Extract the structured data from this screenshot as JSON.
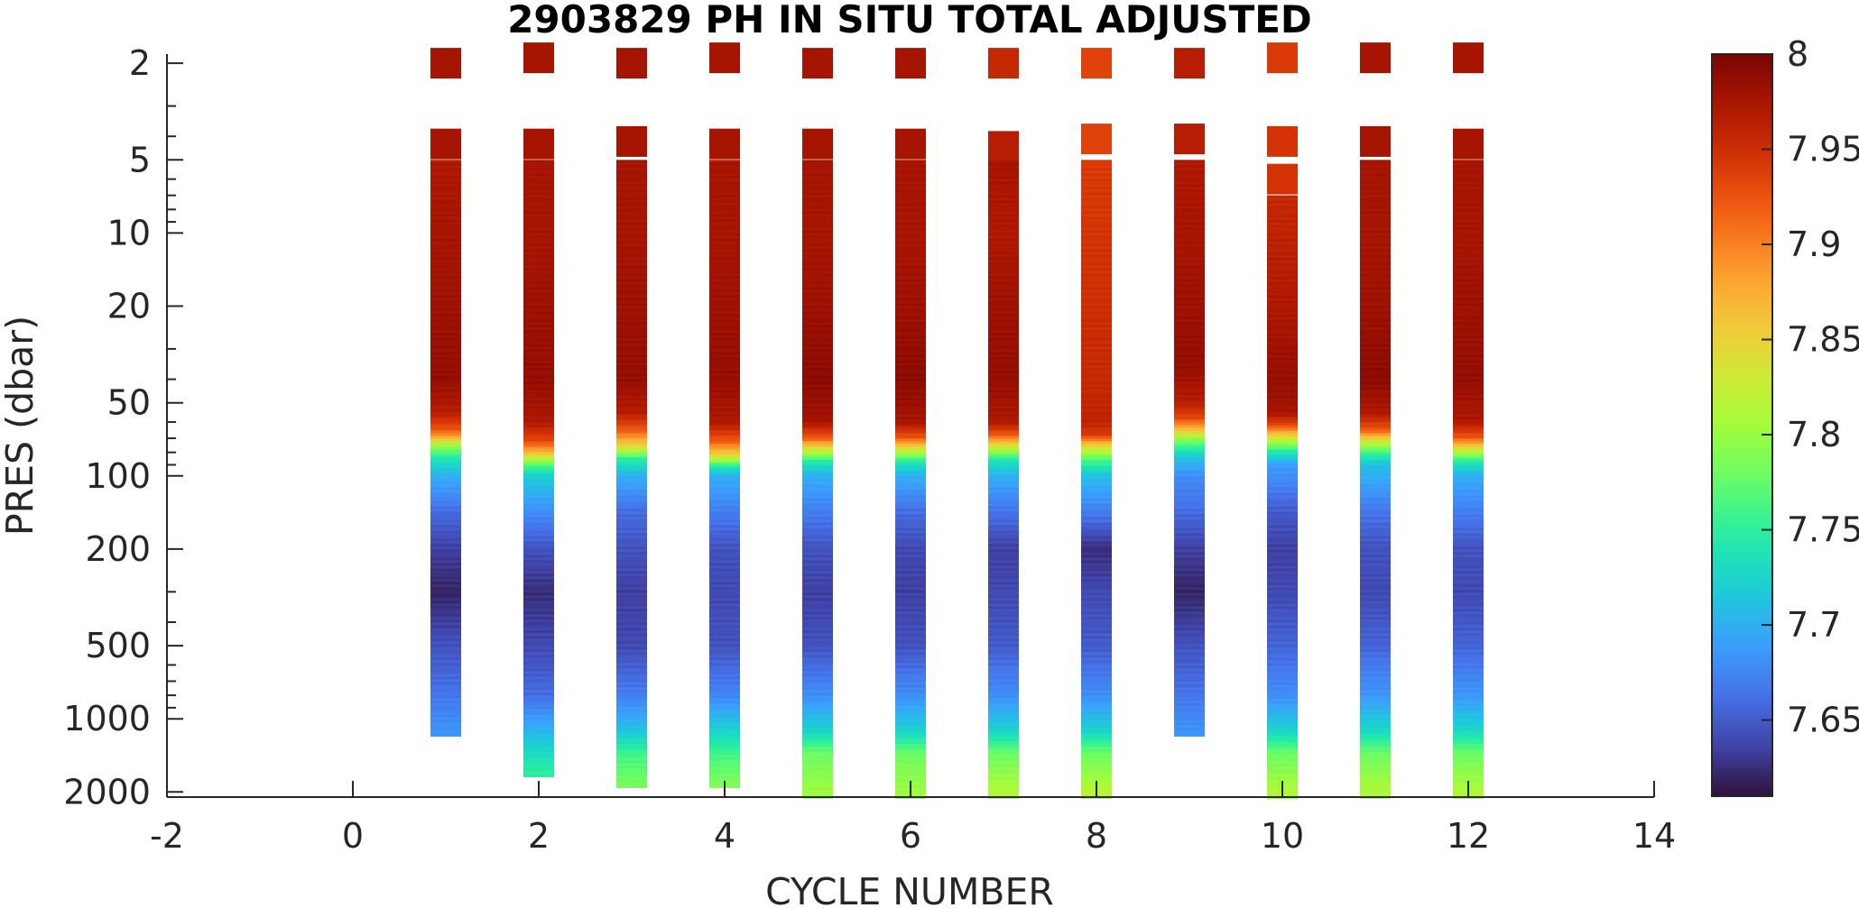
{
  "chart_data": {
    "type": "heatmap",
    "title": "2903829  PH IN SITU TOTAL ADJUSTED",
    "xlabel": "CYCLE NUMBER",
    "ylabel": "PRES (dbar)",
    "xlim": [
      -2,
      14
    ],
    "x_ticks": [
      -2,
      0,
      2,
      4,
      6,
      8,
      10,
      12,
      14
    ],
    "x_tick_labels": [
      "-2",
      "0",
      "2",
      "4",
      "6",
      "8",
      "10",
      "12",
      "14"
    ],
    "y_scale": "log",
    "y_reversed": true,
    "ylim": [
      1.6,
      2100
    ],
    "y_ticks": [
      2,
      5,
      10,
      20,
      50,
      100,
      200,
      500,
      1000,
      2000
    ],
    "y_tick_labels": [
      "2",
      "5",
      "10",
      "20",
      "50",
      "100",
      "200",
      "500",
      "1000",
      "2000"
    ],
    "colorbar": {
      "min": 7.61,
      "max": 8.0,
      "ticks": [
        7.65,
        7.7,
        7.75,
        7.8,
        7.85,
        7.9,
        7.95,
        8
      ],
      "tick_labels": [
        "7.65",
        "7.7",
        "7.75",
        "7.8",
        "7.85",
        "7.9",
        "7.95",
        "8"
      ],
      "colormap": "turbo"
    },
    "profiles": [
      {
        "cycle": 1,
        "top_samples": [
          {
            "pres": 2.0,
            "ph": 7.975
          },
          {
            "pres": 4.3,
            "ph": 7.975
          }
        ],
        "profile": [
          [
            5,
            7.97
          ],
          [
            10,
            7.975
          ],
          [
            20,
            7.98
          ],
          [
            40,
            7.985
          ],
          [
            55,
            7.965
          ],
          [
            65,
            7.92
          ],
          [
            70,
            7.87
          ],
          [
            75,
            7.8
          ],
          [
            85,
            7.74
          ],
          [
            100,
            7.7
          ],
          [
            140,
            7.66
          ],
          [
            200,
            7.635
          ],
          [
            300,
            7.62
          ],
          [
            500,
            7.645
          ],
          [
            800,
            7.665
          ],
          [
            1150,
            7.685
          ]
        ]
      },
      {
        "cycle": 2,
        "top_samples": [
          {
            "pres": 1.9,
            "ph": 7.975
          },
          {
            "pres": 4.3,
            "ph": 7.975
          }
        ],
        "profile": [
          [
            5,
            7.975
          ],
          [
            10,
            7.975
          ],
          [
            20,
            7.98
          ],
          [
            40,
            7.985
          ],
          [
            60,
            7.97
          ],
          [
            72,
            7.93
          ],
          [
            80,
            7.87
          ],
          [
            90,
            7.77
          ],
          [
            100,
            7.72
          ],
          [
            140,
            7.68
          ],
          [
            200,
            7.645
          ],
          [
            300,
            7.625
          ],
          [
            500,
            7.64
          ],
          [
            800,
            7.66
          ],
          [
            1100,
            7.7
          ],
          [
            1500,
            7.74
          ],
          [
            1700,
            7.75
          ]
        ]
      },
      {
        "cycle": 3,
        "top_samples": [
          {
            "pres": 2.0,
            "ph": 7.975
          },
          {
            "pres": 4.2,
            "ph": 7.975
          }
        ],
        "profile": [
          [
            5,
            7.975
          ],
          [
            10,
            7.975
          ],
          [
            20,
            7.98
          ],
          [
            40,
            7.985
          ],
          [
            55,
            7.965
          ],
          [
            65,
            7.92
          ],
          [
            75,
            7.85
          ],
          [
            85,
            7.75
          ],
          [
            100,
            7.7
          ],
          [
            140,
            7.66
          ],
          [
            200,
            7.645
          ],
          [
            300,
            7.635
          ],
          [
            500,
            7.64
          ],
          [
            800,
            7.67
          ],
          [
            1100,
            7.71
          ],
          [
            1400,
            7.76
          ],
          [
            1900,
            7.785
          ]
        ]
      },
      {
        "cycle": 4,
        "top_samples": [
          {
            "pres": 1.9,
            "ph": 7.975
          },
          {
            "pres": 4.3,
            "ph": 7.975
          }
        ],
        "profile": [
          [
            5,
            7.975
          ],
          [
            10,
            7.975
          ],
          [
            20,
            7.98
          ],
          [
            40,
            7.985
          ],
          [
            60,
            7.97
          ],
          [
            72,
            7.92
          ],
          [
            82,
            7.85
          ],
          [
            92,
            7.74
          ],
          [
            100,
            7.7
          ],
          [
            140,
            7.67
          ],
          [
            200,
            7.645
          ],
          [
            300,
            7.64
          ],
          [
            500,
            7.645
          ],
          [
            800,
            7.675
          ],
          [
            1100,
            7.72
          ],
          [
            1400,
            7.76
          ],
          [
            1900,
            7.79
          ]
        ]
      },
      {
        "cycle": 5,
        "top_samples": [
          {
            "pres": 2.0,
            "ph": 7.975
          },
          {
            "pres": 4.3,
            "ph": 7.975
          }
        ],
        "profile": [
          [
            5,
            7.975
          ],
          [
            10,
            7.975
          ],
          [
            20,
            7.98
          ],
          [
            40,
            7.99
          ],
          [
            60,
            7.975
          ],
          [
            70,
            7.92
          ],
          [
            78,
            7.83
          ],
          [
            88,
            7.74
          ],
          [
            100,
            7.7
          ],
          [
            140,
            7.67
          ],
          [
            200,
            7.645
          ],
          [
            300,
            7.635
          ],
          [
            500,
            7.645
          ],
          [
            800,
            7.68
          ],
          [
            1100,
            7.72
          ],
          [
            1400,
            7.78
          ],
          [
            2100,
            7.805
          ]
        ]
      },
      {
        "cycle": 6,
        "top_samples": [
          {
            "pres": 2.0,
            "ph": 7.975
          },
          {
            "pres": 4.3,
            "ph": 7.975
          }
        ],
        "profile": [
          [
            5,
            7.975
          ],
          [
            10,
            7.975
          ],
          [
            20,
            7.98
          ],
          [
            40,
            7.99
          ],
          [
            60,
            7.975
          ],
          [
            70,
            7.92
          ],
          [
            78,
            7.83
          ],
          [
            88,
            7.74
          ],
          [
            100,
            7.7
          ],
          [
            140,
            7.66
          ],
          [
            200,
            7.64
          ],
          [
            300,
            7.635
          ],
          [
            500,
            7.645
          ],
          [
            800,
            7.68
          ],
          [
            1100,
            7.72
          ],
          [
            1400,
            7.78
          ],
          [
            2100,
            7.805
          ]
        ]
      },
      {
        "cycle": 7,
        "top_samples": [
          {
            "pres": 2.0,
            "ph": 7.955
          },
          {
            "pres": 4.4,
            "ph": 7.965
          }
        ],
        "profile": [
          [
            5,
            7.975
          ],
          [
            10,
            7.97
          ],
          [
            20,
            7.98
          ],
          [
            40,
            7.985
          ],
          [
            60,
            7.97
          ],
          [
            68,
            7.92
          ],
          [
            76,
            7.83
          ],
          [
            86,
            7.74
          ],
          [
            100,
            7.7
          ],
          [
            140,
            7.665
          ],
          [
            200,
            7.635
          ],
          [
            300,
            7.64
          ],
          [
            500,
            7.65
          ],
          [
            800,
            7.68
          ],
          [
            1100,
            7.72
          ],
          [
            1400,
            7.78
          ],
          [
            2100,
            7.815
          ]
        ]
      },
      {
        "cycle": 8,
        "top_samples": [
          {
            "pres": 2.0,
            "ph": 7.935
          },
          {
            "pres": 4.1,
            "ph": 7.935
          }
        ],
        "profile": [
          [
            5,
            7.94
          ],
          [
            10,
            7.945
          ],
          [
            20,
            7.95
          ],
          [
            40,
            7.955
          ],
          [
            60,
            7.96
          ],
          [
            68,
            7.94
          ],
          [
            75,
            7.85
          ],
          [
            85,
            7.77
          ],
          [
            100,
            7.71
          ],
          [
            140,
            7.67
          ],
          [
            200,
            7.625
          ],
          [
            300,
            7.64
          ],
          [
            500,
            7.65
          ],
          [
            800,
            7.68
          ],
          [
            1100,
            7.72
          ],
          [
            1400,
            7.78
          ],
          [
            2100,
            7.82
          ]
        ]
      },
      {
        "cycle": 9,
        "top_samples": [
          {
            "pres": 2.0,
            "ph": 7.965
          },
          {
            "pres": 4.1,
            "ph": 7.965
          }
        ],
        "profile": [
          [
            5,
            7.97
          ],
          [
            10,
            7.975
          ],
          [
            20,
            7.98
          ],
          [
            35,
            7.985
          ],
          [
            50,
            7.965
          ],
          [
            58,
            7.93
          ],
          [
            65,
            7.86
          ],
          [
            72,
            7.78
          ],
          [
            85,
            7.71
          ],
          [
            100,
            7.68
          ],
          [
            140,
            7.66
          ],
          [
            200,
            7.635
          ],
          [
            300,
            7.62
          ],
          [
            500,
            7.645
          ],
          [
            800,
            7.665
          ],
          [
            1150,
            7.685
          ]
        ]
      },
      {
        "cycle": 10,
        "top_samples": [
          {
            "pres": 1.9,
            "ph": 7.94
          },
          {
            "pres": 4.2,
            "ph": 7.945
          },
          {
            "pres": 6.0,
            "ph": 7.945
          }
        ],
        "profile": [
          [
            7,
            7.955
          ],
          [
            10,
            7.96
          ],
          [
            20,
            7.97
          ],
          [
            40,
            7.985
          ],
          [
            55,
            7.975
          ],
          [
            62,
            7.93
          ],
          [
            70,
            7.83
          ],
          [
            80,
            7.74
          ],
          [
            90,
            7.69
          ],
          [
            140,
            7.65
          ],
          [
            200,
            7.635
          ],
          [
            300,
            7.64
          ],
          [
            500,
            7.655
          ],
          [
            800,
            7.68
          ],
          [
            1100,
            7.72
          ],
          [
            1400,
            7.78
          ],
          [
            2100,
            7.815
          ]
        ]
      },
      {
        "cycle": 11,
        "top_samples": [
          {
            "pres": 1.9,
            "ph": 7.975
          },
          {
            "pres": 4.2,
            "ph": 7.975
          }
        ],
        "profile": [
          [
            5,
            7.975
          ],
          [
            10,
            7.975
          ],
          [
            20,
            7.98
          ],
          [
            40,
            7.99
          ],
          [
            55,
            7.97
          ],
          [
            65,
            7.92
          ],
          [
            72,
            7.83
          ],
          [
            80,
            7.76
          ],
          [
            90,
            7.71
          ],
          [
            140,
            7.665
          ],
          [
            200,
            7.645
          ],
          [
            300,
            7.64
          ],
          [
            500,
            7.655
          ],
          [
            800,
            7.685
          ],
          [
            1100,
            7.725
          ],
          [
            1400,
            7.78
          ],
          [
            2100,
            7.815
          ]
        ]
      },
      {
        "cycle": 12,
        "top_samples": [
          {
            "pres": 1.9,
            "ph": 7.975
          },
          {
            "pres": 4.3,
            "ph": 7.975
          }
        ],
        "profile": [
          [
            5,
            7.975
          ],
          [
            10,
            7.975
          ],
          [
            20,
            7.98
          ],
          [
            40,
            7.985
          ],
          [
            60,
            7.97
          ],
          [
            70,
            7.92
          ],
          [
            78,
            7.83
          ],
          [
            88,
            7.74
          ],
          [
            100,
            7.7
          ],
          [
            140,
            7.67
          ],
          [
            200,
            7.645
          ],
          [
            300,
            7.64
          ],
          [
            500,
            7.655
          ],
          [
            800,
            7.685
          ],
          [
            1100,
            7.725
          ],
          [
            1400,
            7.78
          ],
          [
            2100,
            7.815
          ]
        ]
      }
    ]
  }
}
